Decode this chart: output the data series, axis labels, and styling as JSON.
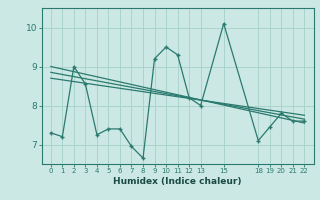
{
  "xlabel": "Humidex (Indice chaleur)",
  "bg_color": "#cce8e4",
  "line_color": "#2a7a6f",
  "grid_color": "#aad4cc",
  "ylim": [
    6.5,
    10.5
  ],
  "yticks": [
    7,
    8,
    9,
    10
  ],
  "xticks": [
    0,
    1,
    2,
    3,
    4,
    5,
    6,
    7,
    8,
    9,
    10,
    11,
    12,
    13,
    15,
    18,
    19,
    20,
    21,
    22
  ],
  "line1_x": [
    0,
    1,
    2,
    3,
    4,
    5,
    6,
    7,
    8,
    9,
    10,
    11,
    12,
    13,
    15,
    18,
    19,
    20,
    21,
    22
  ],
  "line1_y": [
    7.3,
    7.2,
    9.0,
    8.55,
    7.25,
    7.4,
    7.4,
    6.95,
    6.65,
    9.2,
    9.5,
    9.3,
    8.2,
    8.0,
    10.1,
    7.1,
    7.45,
    7.8,
    7.6,
    7.6
  ],
  "line2_x": [
    0,
    22
  ],
  "line2_y": [
    8.85,
    7.65
  ],
  "line3_x": [
    0,
    22
  ],
  "line3_y": [
    9.0,
    7.55
  ],
  "line4_x": [
    0,
    22
  ],
  "line4_y": [
    8.7,
    7.75
  ]
}
